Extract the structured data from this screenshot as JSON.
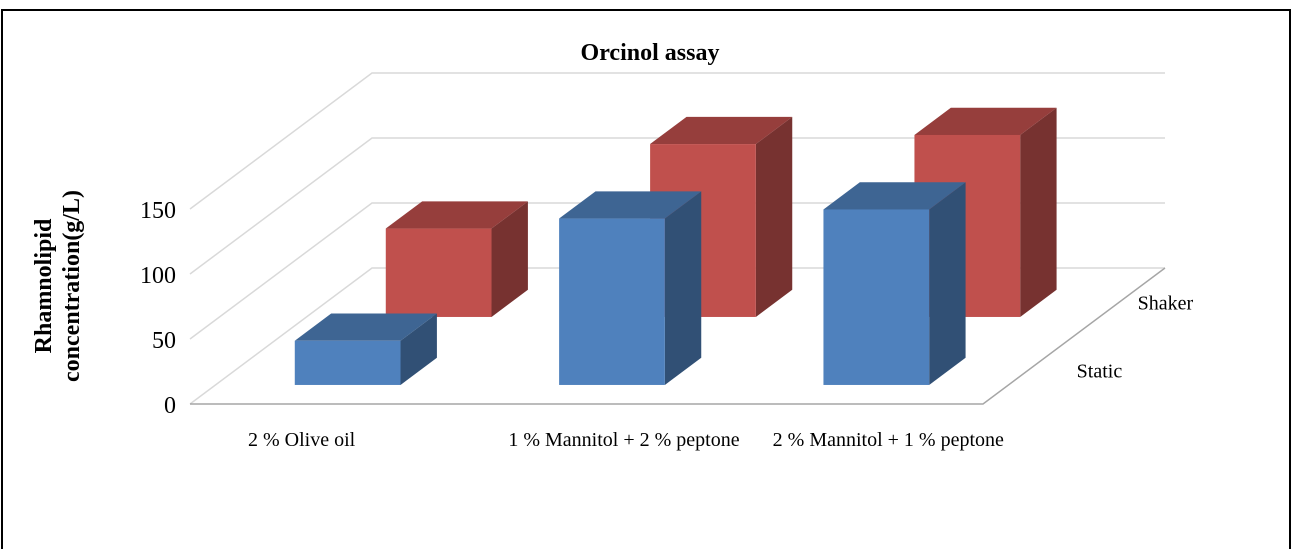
{
  "chart_data": {
    "type": "bar3d",
    "title": "Orcinol assay",
    "y_label": "Rhamnolipid concentration(g/L)",
    "categories": [
      "2 % Olive oil",
      "1 % Mannitol + 2 % peptone",
      "2 % Mannitol +  1 % peptone"
    ],
    "series": [
      {
        "name": "Static",
        "color": "#4f81bd",
        "values": [
          34,
          128,
          135
        ]
      },
      {
        "name": "Shaker",
        "color": "#c0504d",
        "values": [
          68,
          133,
          140
        ]
      }
    ],
    "ylim": [
      0,
      150
    ],
    "yticks": [
      0,
      50,
      100,
      150
    ],
    "grid": true
  }
}
